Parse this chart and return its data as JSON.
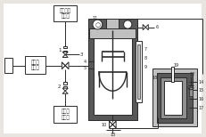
{
  "bg_color": "#e8e4df",
  "line_color": "#2a2a2a",
  "fill_light": "#c0c0c0",
  "fill_mid": "#909090",
  "fill_dark": "#585858",
  "fill_white": "#ffffff",
  "labels": {
    "yuan_liao": "原料泵\n入裝置",
    "tiao_jie": "調理劑注\n入裝置",
    "gao_ya": "高壓注\n水裝置"
  }
}
